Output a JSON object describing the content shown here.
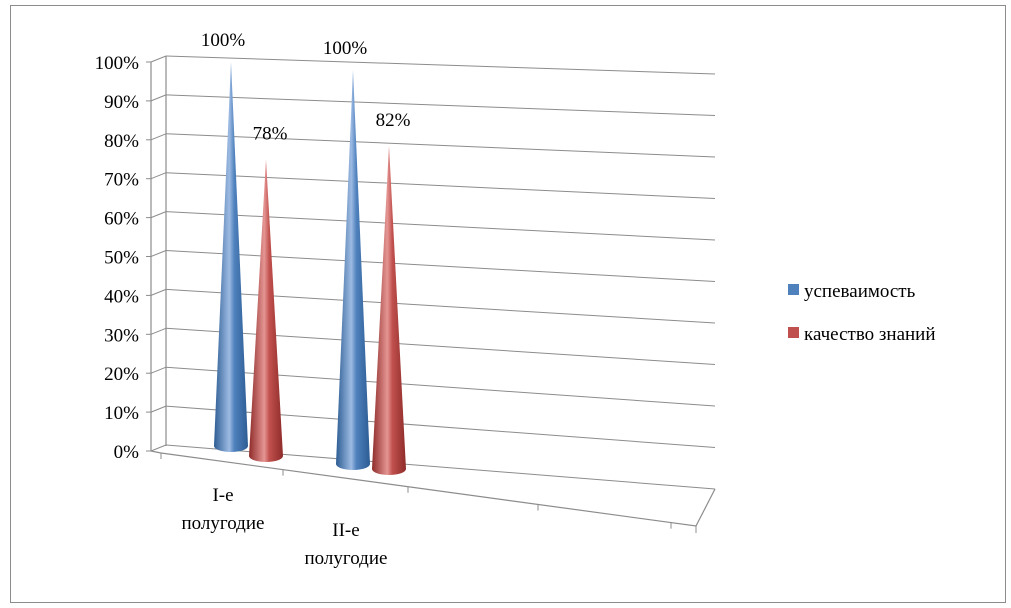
{
  "chart_data": {
    "type": "bar",
    "bar_shape": "cone-3d",
    "categories": [
      "I-е полугодие",
      "II-е полугодие"
    ],
    "category_lines": [
      [
        "I-е",
        "полугодие"
      ],
      [
        "II-е",
        "полугодие"
      ]
    ],
    "series": [
      {
        "name": "успеваимость",
        "values": [
          100,
          100
        ],
        "labels": [
          "100%",
          "100%"
        ],
        "color": "#4f81bd",
        "color_dark": "#2c5c93",
        "color_light": "#9dbbe3"
      },
      {
        "name": "качество знаний",
        "values": [
          78,
          82
        ],
        "labels": [
          "78%",
          "82%"
        ],
        "color": "#c0504d",
        "color_dark": "#8e2c2a",
        "color_light": "#e59593"
      }
    ],
    "y_ticks": [
      "0%",
      "10%",
      "20%",
      "30%",
      "40%",
      "50%",
      "60%",
      "70%",
      "80%",
      "90%",
      "100%"
    ],
    "ylim": [
      0,
      100
    ],
    "grid": true,
    "legend": "right",
    "gridline_color": "#8c8c8c"
  }
}
